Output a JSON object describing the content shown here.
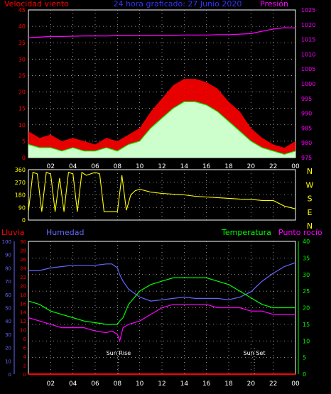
{
  "header": {
    "left_label": "Velocidad viento",
    "center_label": "24 hora graficado:  27 Junio 2020",
    "right_label": "Presión"
  },
  "bottom_labels": {
    "rain": "Lluvia",
    "humidity": "Humedad",
    "temperature": "Temperatura",
    "dewpoint": "Punto rocío",
    "sunrise": "Sun Rise",
    "sunset": "Sun Set"
  },
  "x_ticks": [
    "02",
    "04",
    "06",
    "08",
    "10",
    "12",
    "14",
    "16",
    "18",
    "20",
    "22",
    "00"
  ],
  "colors": {
    "wind_gust": "#ff0000",
    "wind_avg": "#00ff00",
    "wind_fill": "#ccffcc",
    "pressure": "#ff00ff",
    "direction": "#ffff00",
    "humidity": "#6666ff",
    "temperature": "#00ff00",
    "dewpoint": "#ff00ff",
    "rain": "#ff0000",
    "frame": "#ffffff"
  },
  "chart_data": [
    {
      "type": "area",
      "y_left_ticks": [
        "0",
        "5",
        "10",
        "15",
        "20",
        "25",
        "30",
        "35",
        "40",
        "45"
      ],
      "y_left_range": [
        0,
        45
      ],
      "y_right_ticks": [
        "975",
        "980",
        "985",
        "990",
        "995",
        "1000",
        "1005",
        "1010",
        "1015",
        "1020",
        "1025"
      ],
      "y_right_range": [
        975,
        1025
      ],
      "grid": true,
      "x_hours": [
        0,
        1,
        2,
        3,
        4,
        5,
        6,
        7,
        8,
        9,
        10,
        11,
        12,
        13,
        14,
        15,
        16,
        17,
        18,
        19,
        20,
        21,
        22,
        23,
        24
      ],
      "series": [
        {
          "name": "Velocidad viento",
          "key": "gust",
          "values": [
            8,
            6,
            7,
            5,
            6,
            5,
            4,
            6,
            5,
            7,
            9,
            14,
            18,
            22,
            24,
            24,
            23,
            21,
            17,
            14,
            9,
            6,
            4,
            3,
            5
          ]
        },
        {
          "name": "",
          "key": "avg",
          "values": [
            4,
            3,
            3,
            2,
            3,
            2,
            2,
            3,
            2,
            4,
            5,
            9,
            12,
            15,
            17,
            17,
            16,
            14,
            11,
            8,
            5,
            3,
            2,
            1,
            2
          ]
        },
        {
          "name": "Presión",
          "key": "pressure",
          "values": [
            1015.6,
            1015.8,
            1016.0,
            1016.0,
            1016.1,
            1016.2,
            1016.2,
            1016.2,
            1016.3,
            1016.3,
            1016.3,
            1016.4,
            1016.4,
            1016.4,
            1016.5,
            1016.5,
            1016.5,
            1016.6,
            1016.6,
            1016.8,
            1017.0,
            1017.8,
            1018.5,
            1019.0,
            1018.9
          ]
        }
      ]
    },
    {
      "type": "line",
      "y_left_ticks": [
        "0",
        "90",
        "180",
        "270",
        "360"
      ],
      "y_left_range": [
        0,
        360
      ],
      "y_right_ticks": [
        "N",
        "W",
        "S",
        "E",
        "N"
      ],
      "grid": true,
      "x_hours": [
        0,
        0.4,
        0.8,
        1.2,
        1.6,
        2.0,
        2.4,
        2.8,
        3.2,
        3.6,
        4.0,
        4.4,
        4.8,
        5.2,
        5.6,
        6.0,
        6.4,
        6.8,
        7.2,
        7.6,
        8.0,
        8.4,
        8.8,
        9.2,
        9.6,
        10,
        11,
        12,
        13,
        14,
        15,
        16,
        17,
        18,
        19,
        20,
        21,
        22,
        23,
        24
      ],
      "series": [
        {
          "name": "",
          "values": [
            60,
            340,
            330,
            60,
            340,
            330,
            60,
            300,
            60,
            340,
            330,
            60,
            340,
            320,
            330,
            340,
            330,
            60,
            60,
            60,
            60,
            320,
            70,
            180,
            210,
            220,
            200,
            190,
            185,
            180,
            170,
            165,
            160,
            155,
            150,
            148,
            140,
            140,
            100,
            80
          ]
        }
      ]
    },
    {
      "type": "line",
      "y_hum_ticks": [
        "0",
        "10",
        "20",
        "30",
        "40",
        "50",
        "60",
        "70",
        "80",
        "90",
        "100"
      ],
      "y_hum_range": [
        0,
        100
      ],
      "y_rain_ticks": [
        "0",
        "2",
        "4",
        "6",
        "8",
        "10",
        "12",
        "14",
        "16",
        "18",
        "20",
        "22",
        "24",
        "26",
        "28",
        "30"
      ],
      "y_temp_ticks": [
        "0",
        "5",
        "10",
        "15",
        "20",
        "25",
        "30",
        "35",
        "40"
      ],
      "y_temp_range": [
        0,
        40
      ],
      "grid": true,
      "x_hours": [
        0,
        1,
        2,
        3,
        4,
        5,
        6,
        7,
        7.5,
        8,
        8.2,
        8.5,
        9,
        10,
        11,
        12,
        13,
        14,
        15,
        16,
        17,
        18,
        19,
        20,
        21,
        22,
        23,
        24
      ],
      "series": [
        {
          "name": "Humedad",
          "values": [
            78,
            78,
            80,
            81,
            82,
            82,
            82,
            83,
            83,
            80,
            75,
            70,
            64,
            58,
            55,
            56,
            57,
            58,
            57,
            57,
            57,
            56,
            58,
            62,
            70,
            76,
            81,
            84
          ]
        },
        {
          "name": "Temperatura",
          "values": [
            22,
            21,
            19,
            18,
            17,
            16,
            15.5,
            15,
            15,
            15,
            16,
            17,
            21,
            25,
            27,
            28,
            29,
            29,
            29,
            29,
            28,
            27,
            25,
            23,
            21,
            20,
            20,
            20
          ]
        },
        {
          "name": "Punto rocío",
          "values": [
            17,
            16,
            15,
            14,
            14,
            14,
            13,
            12.5,
            13,
            12,
            10,
            14,
            15,
            16,
            18,
            20,
            21,
            21,
            21,
            21,
            20,
            20,
            20,
            19,
            19,
            18,
            18,
            18
          ]
        },
        {
          "name": "Lluvia",
          "values": [
            0,
            0,
            0,
            0,
            0,
            0,
            0,
            0,
            0,
            0,
            0,
            0,
            0,
            0,
            0,
            0,
            0,
            0,
            0,
            0,
            0,
            0,
            0,
            0,
            0,
            0,
            0,
            0
          ]
        }
      ],
      "markers": [
        {
          "label": "Sun Rise",
          "hour": 8.1
        },
        {
          "label": "Sun Set",
          "hour": 20.3
        }
      ]
    }
  ]
}
